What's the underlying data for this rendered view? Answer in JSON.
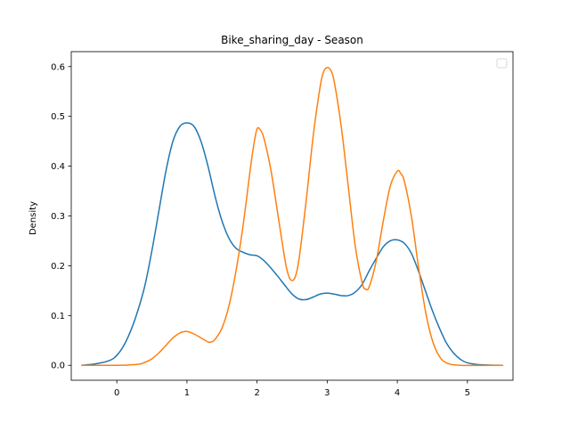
{
  "chart_data": {
    "type": "line",
    "title": "Bike_sharing_day - Season",
    "xlabel": "",
    "ylabel": "Density",
    "xlim": [
      -0.65,
      5.65
    ],
    "ylim": [
      -0.03,
      0.63
    ],
    "xticks": [
      "0",
      "1",
      "2",
      "3",
      "4",
      "5"
    ],
    "yticks": [
      "0.0",
      "0.1",
      "0.2",
      "0.3",
      "0.4",
      "0.5",
      "0.6"
    ],
    "grid": false,
    "legend": {
      "placement": "top-right",
      "entries": []
    },
    "series": [
      {
        "color": "#1f77b4",
        "points": [
          [
            -0.5,
            0.0
          ],
          [
            -0.3,
            0.003
          ],
          [
            -0.1,
            0.01
          ],
          [
            0.0,
            0.02
          ],
          [
            0.1,
            0.04
          ],
          [
            0.2,
            0.07
          ],
          [
            0.3,
            0.11
          ],
          [
            0.4,
            0.16
          ],
          [
            0.5,
            0.23
          ],
          [
            0.6,
            0.31
          ],
          [
            0.7,
            0.39
          ],
          [
            0.8,
            0.45
          ],
          [
            0.9,
            0.48
          ],
          [
            1.0,
            0.487
          ],
          [
            1.1,
            0.48
          ],
          [
            1.2,
            0.45
          ],
          [
            1.3,
            0.4
          ],
          [
            1.4,
            0.34
          ],
          [
            1.5,
            0.29
          ],
          [
            1.6,
            0.255
          ],
          [
            1.7,
            0.235
          ],
          [
            1.8,
            0.227
          ],
          [
            1.9,
            0.222
          ],
          [
            2.0,
            0.22
          ],
          [
            2.1,
            0.21
          ],
          [
            2.2,
            0.195
          ],
          [
            2.3,
            0.178
          ],
          [
            2.4,
            0.16
          ],
          [
            2.5,
            0.143
          ],
          [
            2.6,
            0.133
          ],
          [
            2.7,
            0.132
          ],
          [
            2.8,
            0.137
          ],
          [
            2.9,
            0.143
          ],
          [
            3.0,
            0.145
          ],
          [
            3.1,
            0.143
          ],
          [
            3.2,
            0.14
          ],
          [
            3.3,
            0.14
          ],
          [
            3.4,
            0.147
          ],
          [
            3.5,
            0.163
          ],
          [
            3.6,
            0.19
          ],
          [
            3.7,
            0.215
          ],
          [
            3.8,
            0.238
          ],
          [
            3.9,
            0.25
          ],
          [
            4.0,
            0.252
          ],
          [
            4.1,
            0.245
          ],
          [
            4.2,
            0.225
          ],
          [
            4.3,
            0.19
          ],
          [
            4.4,
            0.15
          ],
          [
            4.5,
            0.11
          ],
          [
            4.6,
            0.075
          ],
          [
            4.7,
            0.045
          ],
          [
            4.8,
            0.025
          ],
          [
            4.9,
            0.012
          ],
          [
            5.0,
            0.005
          ],
          [
            5.2,
            0.001
          ],
          [
            5.5,
            0.0
          ]
        ]
      },
      {
        "color": "#ff7f0e",
        "points": [
          [
            -0.5,
            0.0
          ],
          [
            0.0,
            0.0
          ],
          [
            0.3,
            0.002
          ],
          [
            0.4,
            0.006
          ],
          [
            0.5,
            0.013
          ],
          [
            0.6,
            0.025
          ],
          [
            0.7,
            0.04
          ],
          [
            0.8,
            0.055
          ],
          [
            0.9,
            0.065
          ],
          [
            1.0,
            0.068
          ],
          [
            1.1,
            0.063
          ],
          [
            1.2,
            0.055
          ],
          [
            1.3,
            0.047
          ],
          [
            1.35,
            0.047
          ],
          [
            1.4,
            0.052
          ],
          [
            1.5,
            0.075
          ],
          [
            1.6,
            0.12
          ],
          [
            1.7,
            0.19
          ],
          [
            1.8,
            0.28
          ],
          [
            1.9,
            0.39
          ],
          [
            1.95,
            0.44
          ],
          [
            2.0,
            0.475
          ],
          [
            2.05,
            0.472
          ],
          [
            2.1,
            0.455
          ],
          [
            2.2,
            0.39
          ],
          [
            2.3,
            0.3
          ],
          [
            2.4,
            0.21
          ],
          [
            2.45,
            0.18
          ],
          [
            2.5,
            0.17
          ],
          [
            2.55,
            0.18
          ],
          [
            2.6,
            0.215
          ],
          [
            2.7,
            0.33
          ],
          [
            2.8,
            0.46
          ],
          [
            2.9,
            0.56
          ],
          [
            2.95,
            0.59
          ],
          [
            3.0,
            0.598
          ],
          [
            3.05,
            0.593
          ],
          [
            3.1,
            0.57
          ],
          [
            3.2,
            0.48
          ],
          [
            3.3,
            0.36
          ],
          [
            3.4,
            0.24
          ],
          [
            3.5,
            0.165
          ],
          [
            3.55,
            0.153
          ],
          [
            3.6,
            0.158
          ],
          [
            3.7,
            0.21
          ],
          [
            3.8,
            0.29
          ],
          [
            3.9,
            0.36
          ],
          [
            4.0,
            0.39
          ],
          [
            4.05,
            0.385
          ],
          [
            4.1,
            0.37
          ],
          [
            4.2,
            0.3
          ],
          [
            4.3,
            0.2
          ],
          [
            4.4,
            0.11
          ],
          [
            4.5,
            0.05
          ],
          [
            4.6,
            0.018
          ],
          [
            4.7,
            0.005
          ],
          [
            4.9,
            0.0
          ],
          [
            5.5,
            0.0
          ]
        ]
      }
    ]
  }
}
